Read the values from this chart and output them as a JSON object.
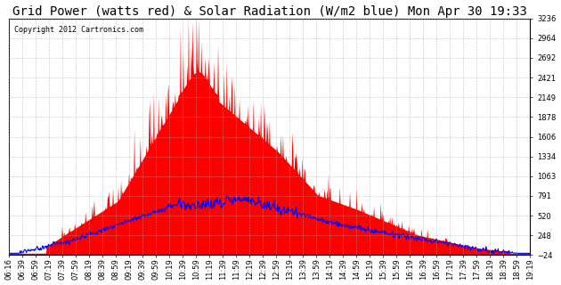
{
  "title": "Grid Power (watts red) & Solar Radiation (W/m2 blue) Mon Apr 30 19:33",
  "copyright": "Copyright 2012 Cartronics.com",
  "y_min": -23.5,
  "y_max": 3235.6,
  "y_ticks": [
    3235.6,
    2964.0,
    2692.4,
    2420.8,
    2149.2,
    1877.6,
    1606.0,
    1334.4,
    1062.9,
    791.3,
    519.7,
    248.1,
    -23.5
  ],
  "x_labels": [
    "06:16",
    "06:39",
    "06:59",
    "07:19",
    "07:39",
    "07:59",
    "08:19",
    "08:39",
    "08:59",
    "09:19",
    "09:39",
    "09:59",
    "10:19",
    "10:39",
    "10:59",
    "11:19",
    "11:39",
    "11:59",
    "12:19",
    "12:39",
    "12:59",
    "13:19",
    "13:39",
    "13:59",
    "14:19",
    "14:39",
    "14:59",
    "15:19",
    "15:39",
    "15:59",
    "16:19",
    "16:39",
    "16:59",
    "17:19",
    "17:39",
    "17:59",
    "18:19",
    "18:39",
    "18:59",
    "19:19"
  ],
  "background_color": "#ffffff",
  "grid_color": "#aaaaaa",
  "red_color": "#ff0000",
  "blue_color": "#0000ff",
  "title_fontsize": 10,
  "copyright_fontsize": 6,
  "tick_fontsize": 6
}
